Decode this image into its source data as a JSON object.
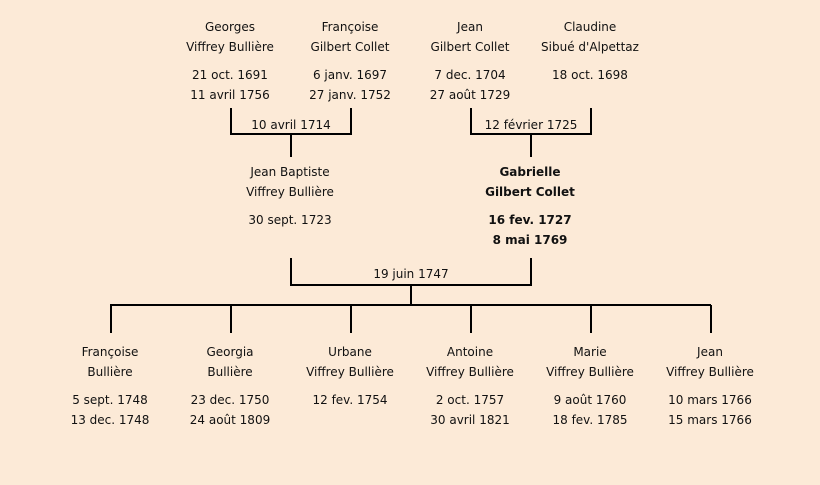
{
  "grandparents": [
    {
      "first": "Georges",
      "last": "Viffrey Bullière",
      "birth": "21 oct. 1691",
      "death": "11 avril 1756"
    },
    {
      "first": "Françoise",
      "last": "Gilbert Collet",
      "birth": "6 janv. 1697",
      "death": "27 janv. 1752"
    },
    {
      "first": "Jean",
      "last": "Gilbert Collet",
      "birth": "7 dec. 1704",
      "death": "27 août 1729"
    },
    {
      "first": "Claudine",
      "last": "Sibué d'Alpettaz",
      "birth": "18 oct. 1698",
      "death": ""
    }
  ],
  "grandparent_marriages": [
    "10 avril 1714",
    "12 février 1725"
  ],
  "parents": [
    {
      "first": "Jean Baptiste",
      "last": "Viffrey Bullière",
      "birth": "30 sept. 1723",
      "death": ""
    },
    {
      "first": "Gabrielle",
      "last": "Gilbert Collet",
      "birth": "16 fev. 1727",
      "death": "8 mai 1769",
      "highlighted": true
    }
  ],
  "parent_marriage": "19 juin 1747",
  "children": [
    {
      "first": "Françoise",
      "last": "Bullière",
      "birth": "5 sept. 1748",
      "death": "13 dec. 1748"
    },
    {
      "first": "Georgia",
      "last": "Bullière",
      "birth": "23 dec. 1750",
      "death": "24 août 1809"
    },
    {
      "first": "Urbane",
      "last": "Viffrey Bullière",
      "birth": "12 fev. 1754",
      "death": ""
    },
    {
      "first": "Antoine",
      "last": "Viffrey Bullière",
      "birth": "2 oct. 1757",
      "death": "30 avril 1821"
    },
    {
      "first": "Marie",
      "last": "Viffrey Bullière",
      "birth": "9 août 1760",
      "death": "18 fev. 1785"
    },
    {
      "first": "Jean",
      "last": "Viffrey Bullière",
      "birth": "10 mars 1766",
      "death": "15 mars 1766"
    }
  ]
}
